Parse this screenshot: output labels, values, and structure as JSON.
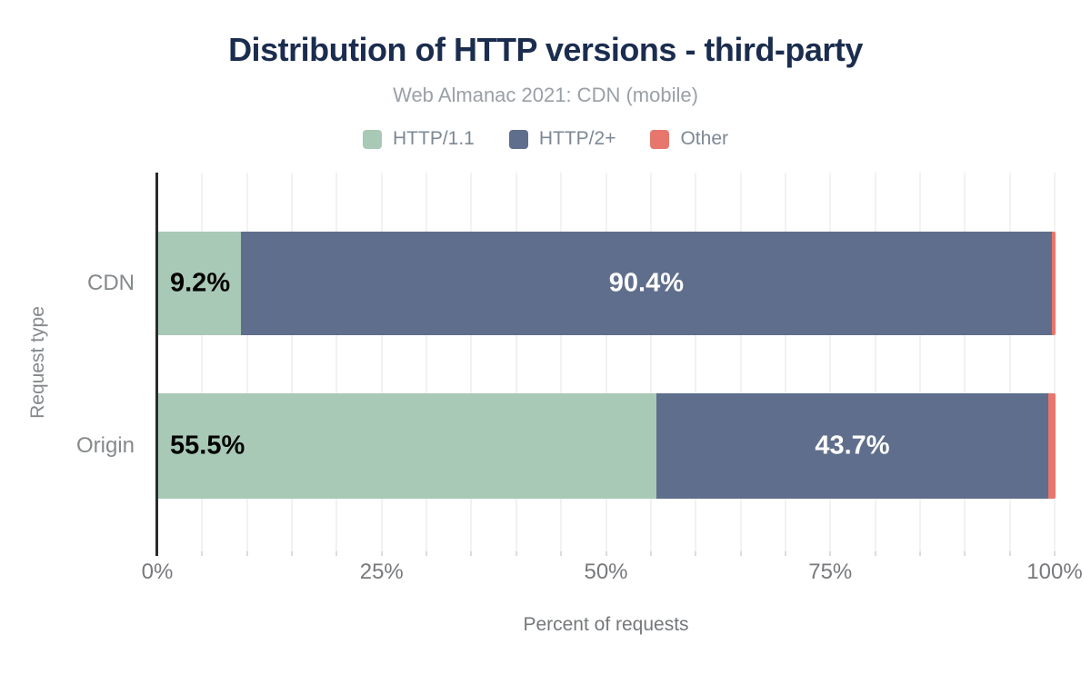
{
  "chart_data": {
    "type": "bar",
    "orientation": "horizontal",
    "stacked": true,
    "title": "Distribution of HTTP versions - third-party",
    "subtitle": "Web Almanac 2021: CDN (mobile)",
    "categories": [
      "CDN",
      "Origin"
    ],
    "series": [
      {
        "name": "HTTP/1.1",
        "color": "#a8c9b6",
        "values": [
          9.2,
          55.5
        ],
        "label_style": "label-left"
      },
      {
        "name": "HTTP/2+",
        "color": "#5f6e8c",
        "values": [
          90.4,
          43.7
        ],
        "label_style": "label-center"
      },
      {
        "name": "Other",
        "color": "#e7766c",
        "values": [
          0.4,
          0.8
        ],
        "label_style": ""
      }
    ],
    "segment_labels": [
      [
        "9.2%",
        "90.4%",
        ""
      ],
      [
        "55.5%",
        "43.7%",
        ""
      ]
    ],
    "xlabel": "Percent of requests",
    "ylabel": "Request type",
    "x_ticks": [
      "0%",
      "25%",
      "50%",
      "75%",
      "100%"
    ],
    "x_tick_positions": [
      0,
      25,
      50,
      75,
      100
    ],
    "xlim": [
      0,
      100
    ],
    "grid": {
      "minor_step": 5,
      "color": "#f2f2f2"
    },
    "legend_position": "top"
  },
  "colors": {
    "title_text": "#1b2d4f",
    "subtitle_text": "#9aa0a6",
    "axis_line": "#2b2b2b",
    "series_http11": "#a8c9b6",
    "series_http2plus": "#5f6e8c",
    "series_other": "#e7766c"
  }
}
